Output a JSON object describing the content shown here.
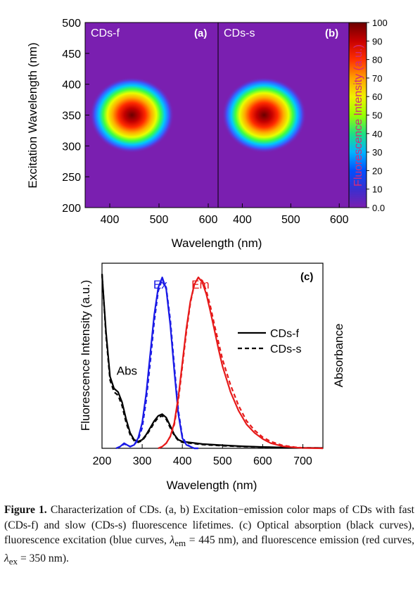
{
  "chart_data": [
    {
      "type": "heatmap",
      "panel_label": "(a)",
      "sample_label": "CDs-f",
      "xlabel": "Wavelength (nm)",
      "ylabel": "Excitation Wavelength (nm)",
      "xlim": [
        350,
        620
      ],
      "ylim": [
        200,
        500
      ],
      "xticks": [
        400,
        500,
        600
      ],
      "yticks": [
        200,
        250,
        300,
        350,
        400,
        450,
        500
      ],
      "peak": {
        "em": 445,
        "ex": 350,
        "intensity": 100
      },
      "colorbar": {
        "label": "Fluorescence Intensity (a.u.)",
        "range": [
          0.0,
          100
        ],
        "ticks": [
          "0.0",
          "10",
          "20",
          "30",
          "40",
          "50",
          "60",
          "70",
          "80",
          "90",
          "100"
        ]
      }
    },
    {
      "type": "heatmap",
      "panel_label": "(b)",
      "sample_label": "CDs-s",
      "xlabel": "Wavelength (nm)",
      "ylabel": "Excitation Wavelength (nm)",
      "xlim": [
        350,
        620
      ],
      "ylim": [
        200,
        500
      ],
      "xticks": [
        400,
        500,
        600
      ],
      "yticks": [
        200,
        250,
        300,
        350,
        400,
        450,
        500
      ],
      "peak": {
        "em": 445,
        "ex": 350,
        "intensity": 100
      }
    },
    {
      "type": "line",
      "panel_label": "(c)",
      "xlabel": "Wavelength (nm)",
      "ylabel": "Fluorescence Intensity (a.u.)",
      "y2label": "Absorbance",
      "xlim": [
        200,
        750
      ],
      "xticks": [
        200,
        300,
        400,
        500,
        600,
        700
      ],
      "ylim": [
        0,
        1.05
      ],
      "annotations": [
        {
          "text": "Abs",
          "color": "#000000",
          "x": 262,
          "y": 0.43
        },
        {
          "text": "Ex",
          "color": "#1a1ae6",
          "x": 345,
          "y": 1.05
        },
        {
          "text": "Em",
          "color": "#e61a1a",
          "x": 445,
          "y": 1.05
        }
      ],
      "legend": {
        "placement": "right",
        "entries": [
          {
            "label": "CDs-f",
            "style": "solid"
          },
          {
            "label": "CDs-s",
            "style": "dashed"
          }
        ]
      },
      "series": [
        {
          "name": "CDs-f",
          "kind": "absorbance",
          "color": "#000000",
          "style": "solid",
          "x": [
            200,
            210,
            220,
            230,
            240,
            250,
            260,
            270,
            280,
            290,
            300,
            310,
            320,
            330,
            340,
            350,
            360,
            370,
            380,
            390,
            400,
            450,
            500,
            550,
            600,
            650,
            700,
            750
          ],
          "y": [
            1.02,
            0.68,
            0.42,
            0.35,
            0.33,
            0.27,
            0.17,
            0.09,
            0.05,
            0.04,
            0.05,
            0.08,
            0.12,
            0.16,
            0.19,
            0.2,
            0.18,
            0.13,
            0.08,
            0.05,
            0.04,
            0.025,
            0.018,
            0.012,
            0.008,
            0.005,
            0.003,
            0.002
          ]
        },
        {
          "name": "CDs-s",
          "kind": "absorbance",
          "color": "#000000",
          "style": "dashed",
          "x": [
            200,
            210,
            220,
            230,
            240,
            250,
            260,
            270,
            280,
            290,
            300,
            310,
            320,
            330,
            340,
            350,
            360,
            370,
            380,
            390,
            400,
            450,
            500,
            550,
            600,
            650,
            700,
            750
          ],
          "y": [
            1.02,
            0.66,
            0.4,
            0.33,
            0.31,
            0.25,
            0.15,
            0.08,
            0.045,
            0.035,
            0.045,
            0.075,
            0.11,
            0.15,
            0.18,
            0.19,
            0.17,
            0.12,
            0.075,
            0.045,
            0.035,
            0.022,
            0.015,
            0.01,
            0.007,
            0.004,
            0.003,
            0.002
          ]
        },
        {
          "name": "CDs-f",
          "kind": "excitation",
          "color": "#1a1ae6",
          "style": "solid",
          "x": [
            235,
            245,
            255,
            262,
            270,
            280,
            290,
            300,
            310,
            320,
            330,
            340,
            350,
            360,
            370,
            380,
            390,
            400,
            410,
            420,
            430,
            440
          ],
          "y": [
            0.0,
            0.01,
            0.03,
            0.02,
            0.01,
            0.02,
            0.06,
            0.15,
            0.32,
            0.55,
            0.78,
            0.94,
            1.0,
            0.93,
            0.72,
            0.45,
            0.2,
            0.06,
            0.02,
            0.01,
            0.0,
            0.0
          ]
        },
        {
          "name": "CDs-s",
          "kind": "excitation",
          "color": "#1a1ae6",
          "style": "dashed",
          "x": [
            235,
            245,
            255,
            262,
            270,
            280,
            290,
            300,
            310,
            320,
            330,
            340,
            350,
            360,
            370,
            380,
            390,
            400,
            410,
            420,
            430,
            440
          ],
          "y": [
            0.0,
            0.01,
            0.025,
            0.02,
            0.01,
            0.02,
            0.05,
            0.12,
            0.28,
            0.5,
            0.74,
            0.92,
            0.99,
            0.94,
            0.75,
            0.48,
            0.22,
            0.07,
            0.025,
            0.01,
            0.0,
            0.0
          ]
        },
        {
          "name": "CDs-f",
          "kind": "emission",
          "color": "#e61a1a",
          "style": "solid",
          "x": [
            340,
            350,
            360,
            370,
            380,
            390,
            400,
            410,
            420,
            430,
            440,
            450,
            460,
            470,
            480,
            490,
            500,
            520,
            540,
            560,
            580,
            600,
            620,
            650,
            680,
            700,
            750
          ],
          "y": [
            0.0,
            0.01,
            0.03,
            0.07,
            0.15,
            0.3,
            0.5,
            0.7,
            0.86,
            0.96,
            1.0,
            0.97,
            0.9,
            0.8,
            0.69,
            0.58,
            0.48,
            0.33,
            0.22,
            0.14,
            0.09,
            0.055,
            0.03,
            0.012,
            0.005,
            0.002,
            0.0
          ]
        },
        {
          "name": "CDs-s",
          "kind": "emission",
          "color": "#e61a1a",
          "style": "dashed",
          "x": [
            340,
            350,
            360,
            370,
            380,
            390,
            400,
            410,
            420,
            430,
            440,
            450,
            460,
            470,
            480,
            490,
            500,
            520,
            540,
            560,
            580,
            600,
            620,
            650,
            680,
            700,
            750
          ],
          "y": [
            0.0,
            0.01,
            0.03,
            0.07,
            0.14,
            0.28,
            0.48,
            0.68,
            0.85,
            0.96,
            1.0,
            0.98,
            0.92,
            0.83,
            0.72,
            0.62,
            0.52,
            0.37,
            0.25,
            0.16,
            0.105,
            0.065,
            0.04,
            0.017,
            0.007,
            0.003,
            0.0
          ]
        }
      ]
    }
  ],
  "caption": {
    "label": "Figure 1.",
    "text_1": " Characterization of CDs. (a, b) Excitation−emission color maps of CDs with fast (CDs-f) and slow (CDs-s) fluorescence lifetimes. (c) Optical absorption (black curves), fluorescence excitation (blue curves, ",
    "lambda_em": "λ",
    "sub_em": "em",
    "text_2": " = 445 nm), and fluorescence emission (red curves, ",
    "lambda_ex": "λ",
    "sub_ex": "ex",
    "text_3": " = 350 nm)."
  }
}
